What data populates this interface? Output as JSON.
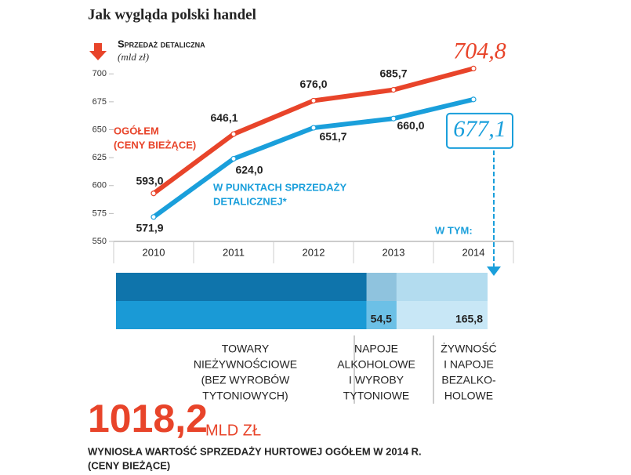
{
  "chart_data": [
    {
      "type": "line",
      "title": "Jak wygląda polski handel",
      "subtitle": "Sprzedaż detaliczna",
      "unit": "(mld zł)",
      "categories": [
        "2010",
        "2011",
        "2012",
        "2013",
        "2014"
      ],
      "series": [
        {
          "name": [
            "OGÓŁEM",
            "(CENY BIEŻĄCE)"
          ],
          "color": "#e8442a",
          "values": [
            593.0,
            646.1,
            676.0,
            685.7,
            704.8
          ],
          "value_labels": [
            "593,0",
            "646,1",
            "676,0",
            "685,7",
            "704,8"
          ]
        },
        {
          "name": [
            "W PUNKTACH SPRZEDAŻY",
            "DETALICZNEJ*"
          ],
          "color": "#1a9fdb",
          "values": [
            571.9,
            624.0,
            651.7,
            660.0,
            677.1
          ],
          "value_labels": [
            "571,9",
            "624,0",
            "651,7",
            "660,0",
            "677,1"
          ]
        }
      ],
      "ylim": [
        550,
        710
      ],
      "yticks": [
        550,
        575,
        600,
        625,
        650,
        675,
        700
      ],
      "grid": false,
      "annotation": "W TYM:"
    },
    {
      "type": "stacked-bar",
      "categories": [
        [
          "TOWARY",
          "NIEŻYWNOŚCIOWE",
          "(BEZ WYROBÓW",
          "TYTONIOWYCH)"
        ],
        [
          "NAPOJE",
          "ALKOHOLOWE",
          "I WYROBY",
          "TYTONIOWE"
        ],
        [
          "ŻYWNOŚĆ",
          "I NAPOJE",
          "BEZALKO-",
          "HOLOWE"
        ]
      ],
      "values": [
        456.8,
        54.5,
        165.8
      ],
      "value_labels": [
        null,
        "54,5",
        "165,8"
      ],
      "colors": [
        "#1a9ad6",
        "#6cc0e6",
        "#c8e7f6"
      ],
      "xlim": [
        0,
        677.1
      ]
    }
  ],
  "footer": {
    "number": "1018,2",
    "unit": "MLD ZŁ",
    "text": [
      "WYNIOSŁA WARTOŚĆ SPRZEDAŻY HURTOWEJ OGÓŁEM W 2014 R.",
      "(CENY BIEŻĄCE)"
    ]
  }
}
